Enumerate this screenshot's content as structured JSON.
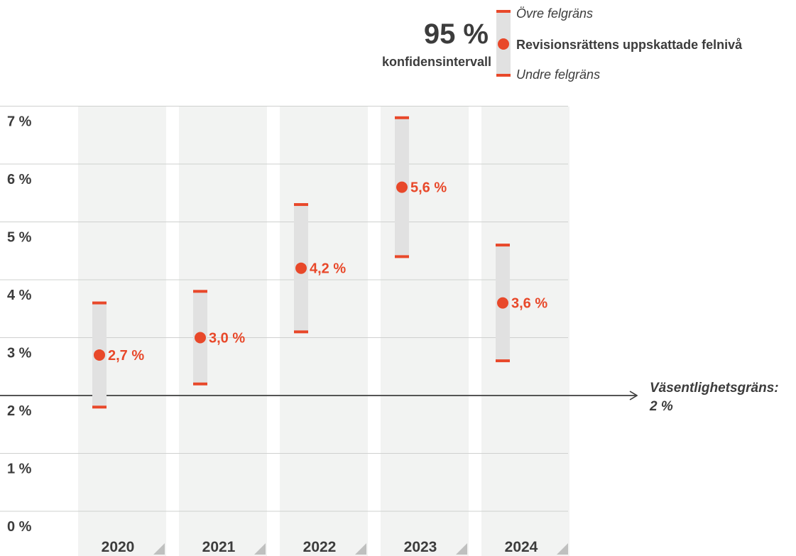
{
  "legend": {
    "confidence_value": "95 %",
    "confidence_label": "konfidensintervall",
    "upper_label": "Övre felgräns",
    "point_label": "Revisionsrättens uppskattade felnivå",
    "lower_label": "Undre felgräns"
  },
  "colors": {
    "accent": "#e8482a",
    "interval": "#e1e1e1",
    "column": "#f2f3f2",
    "grid": "#cfd0cf",
    "text": "#3c3c3c"
  },
  "chart_data": {
    "type": "error-bar",
    "categories": [
      "2020",
      "2021",
      "2022",
      "2023",
      "2024"
    ],
    "point_values": [
      2.7,
      3.0,
      4.2,
      5.6,
      3.6
    ],
    "point_labels": [
      "2,7 %",
      "3,0 %",
      "4,2 %",
      "5,6 %",
      "3,6 %"
    ],
    "lower_bounds": [
      1.8,
      2.2,
      3.1,
      4.4,
      2.6
    ],
    "upper_bounds": [
      3.6,
      3.8,
      5.3,
      6.8,
      4.6
    ],
    "ylim": [
      0,
      7
    ],
    "yticks": [
      0,
      1,
      2,
      3,
      4,
      5,
      6,
      7
    ],
    "ytick_labels": [
      "0 %",
      "1 %",
      "2 %",
      "3 %",
      "4 %",
      "5 %",
      "6 %",
      "7 %"
    ],
    "threshold": {
      "value": 2,
      "label_line1": "Väsentlighetsgräns:",
      "label_line2": "2 %"
    },
    "grid": true,
    "legend_position": "top-right"
  }
}
